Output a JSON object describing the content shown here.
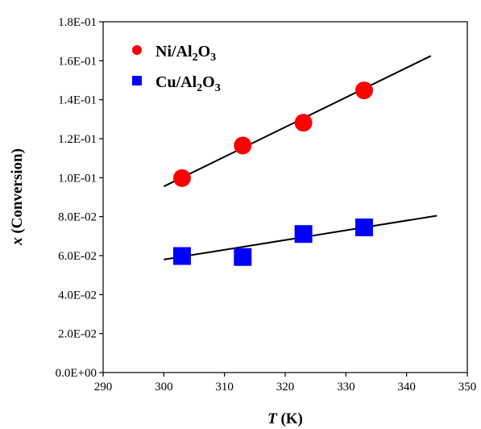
{
  "chart_data": {
    "type": "scatter",
    "xlabel_italic": "T",
    "xlabel_rest": " (K)",
    "ylabel_italic": "x",
    "ylabel_rest": " (Conversion)",
    "xlim": [
      290,
      350
    ],
    "ylim": [
      0,
      0.18
    ],
    "x_ticks": [
      290,
      300,
      310,
      320,
      330,
      340,
      350
    ],
    "x_tick_labels": [
      "290",
      "300",
      "310",
      "320",
      "330",
      "340",
      "350"
    ],
    "y_ticks": [
      0,
      0.02,
      0.04,
      0.06,
      0.08,
      0.1,
      0.12,
      0.14,
      0.16,
      0.18
    ],
    "y_tick_labels": [
      "0.0E+00",
      "2.0E-02",
      "4.0E-02",
      "6.0E-02",
      "8.0E-02",
      "1.0E-01",
      "1.2E-01",
      "1.4E-01",
      "1.6E-01",
      "1.8E-01"
    ],
    "grid": false,
    "legend_position": "top-left",
    "series": [
      {
        "legend_parts": [
          "Ni/Al",
          "2",
          "O",
          "3"
        ],
        "marker": "circle",
        "color": "#ff0000",
        "x": [
          303,
          313,
          323,
          333
        ],
        "y": [
          0.0998,
          0.1165,
          0.1282,
          0.1448
        ],
        "trend_x": [
          300,
          344
        ],
        "trend_y": [
          0.0955,
          0.1625
        ]
      },
      {
        "legend_parts": [
          "Cu/Al",
          "2",
          "O",
          "3"
        ],
        "marker": "square",
        "color": "#0000ff",
        "x": [
          303,
          313,
          323,
          333
        ],
        "y": [
          0.0598,
          0.0593,
          0.0711,
          0.0745
        ],
        "trend_x": [
          300,
          345
        ],
        "trend_y": [
          0.058,
          0.0805
        ]
      }
    ]
  }
}
